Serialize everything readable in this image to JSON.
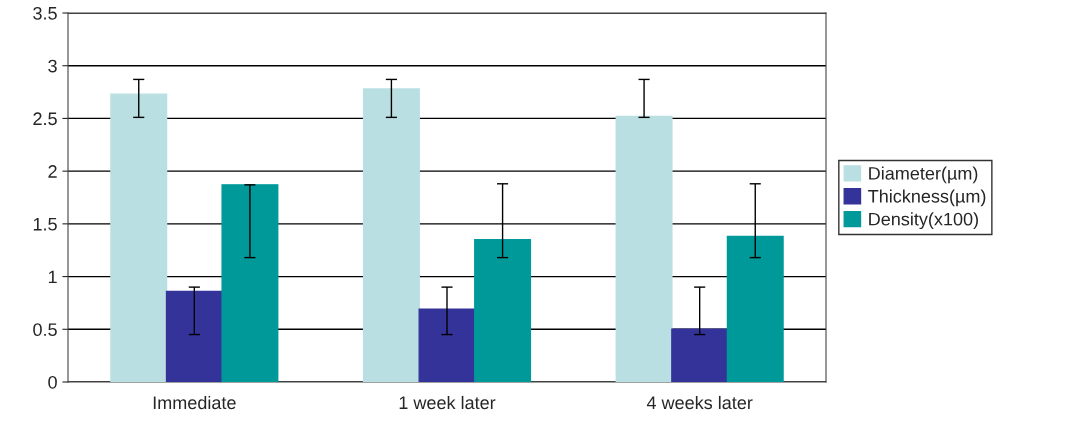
{
  "chart_data": {
    "type": "bar",
    "categories": [
      "Immediate",
      "1 week later",
      "4 weeks later"
    ],
    "series": [
      {
        "name": "Diameter(µm)",
        "color": "#b9dfe2",
        "values": [
          2.73,
          2.78,
          2.52
        ],
        "errors": [
          [
            2.51,
            2.87
          ],
          [
            2.51,
            2.87
          ],
          [
            2.51,
            2.87
          ]
        ]
      },
      {
        "name": "Thickness(µm)",
        "color": "#333399",
        "values": [
          0.86,
          0.69,
          0.5
        ],
        "errors": [
          [
            0.45,
            0.9
          ],
          [
            0.45,
            0.9
          ],
          [
            0.45,
            0.9
          ]
        ]
      },
      {
        "name": "Density(x100)",
        "color": "#009999",
        "values": [
          1.87,
          1.35,
          1.38
        ],
        "errors": [
          [
            1.18,
            1.87
          ],
          [
            1.18,
            1.88
          ],
          [
            1.18,
            1.88
          ]
        ]
      }
    ],
    "ylim": [
      0,
      3.5
    ],
    "yticks": [
      0,
      0.5,
      1,
      1.5,
      2,
      2.5,
      3,
      3.5
    ],
    "grid": "y",
    "legend": "right"
  }
}
